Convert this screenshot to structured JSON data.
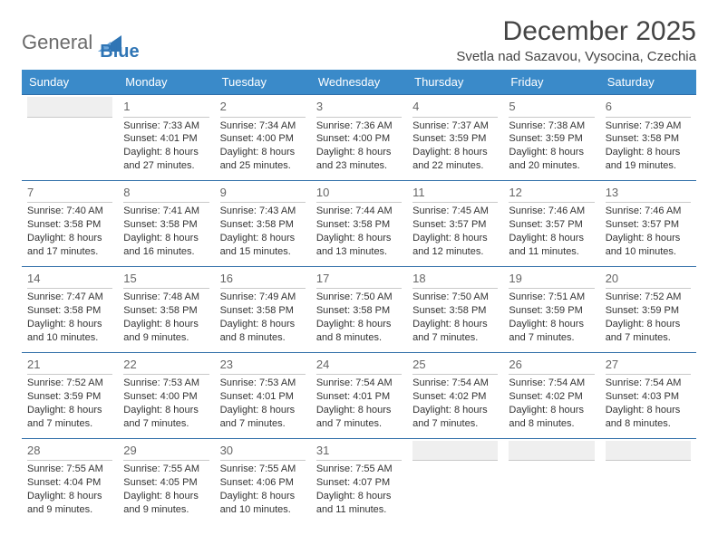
{
  "brand": {
    "part1": "General",
    "part2": "Blue",
    "triangle_color": "#2f75b5"
  },
  "title": {
    "month": "December 2025",
    "location": "Svetla nad Sazavou, Vysocina, Czechia"
  },
  "colors": {
    "header_bg": "#3a8ac9",
    "header_fg": "#ffffff",
    "row_border": "#2f6ea8",
    "daynum_rule": "#c9c9c9",
    "text": "#333333"
  },
  "weekdays": [
    "Sunday",
    "Monday",
    "Tuesday",
    "Wednesday",
    "Thursday",
    "Friday",
    "Saturday"
  ],
  "weeks": [
    [
      {
        "n": "",
        "sr": "",
        "ss": "",
        "dl": ""
      },
      {
        "n": "1",
        "sr": "Sunrise: 7:33 AM",
        "ss": "Sunset: 4:01 PM",
        "dl": "Daylight: 8 hours and 27 minutes."
      },
      {
        "n": "2",
        "sr": "Sunrise: 7:34 AM",
        "ss": "Sunset: 4:00 PM",
        "dl": "Daylight: 8 hours and 25 minutes."
      },
      {
        "n": "3",
        "sr": "Sunrise: 7:36 AM",
        "ss": "Sunset: 4:00 PM",
        "dl": "Daylight: 8 hours and 23 minutes."
      },
      {
        "n": "4",
        "sr": "Sunrise: 7:37 AM",
        "ss": "Sunset: 3:59 PM",
        "dl": "Daylight: 8 hours and 22 minutes."
      },
      {
        "n": "5",
        "sr": "Sunrise: 7:38 AM",
        "ss": "Sunset: 3:59 PM",
        "dl": "Daylight: 8 hours and 20 minutes."
      },
      {
        "n": "6",
        "sr": "Sunrise: 7:39 AM",
        "ss": "Sunset: 3:58 PM",
        "dl": "Daylight: 8 hours and 19 minutes."
      }
    ],
    [
      {
        "n": "7",
        "sr": "Sunrise: 7:40 AM",
        "ss": "Sunset: 3:58 PM",
        "dl": "Daylight: 8 hours and 17 minutes."
      },
      {
        "n": "8",
        "sr": "Sunrise: 7:41 AM",
        "ss": "Sunset: 3:58 PM",
        "dl": "Daylight: 8 hours and 16 minutes."
      },
      {
        "n": "9",
        "sr": "Sunrise: 7:43 AM",
        "ss": "Sunset: 3:58 PM",
        "dl": "Daylight: 8 hours and 15 minutes."
      },
      {
        "n": "10",
        "sr": "Sunrise: 7:44 AM",
        "ss": "Sunset: 3:58 PM",
        "dl": "Daylight: 8 hours and 13 minutes."
      },
      {
        "n": "11",
        "sr": "Sunrise: 7:45 AM",
        "ss": "Sunset: 3:57 PM",
        "dl": "Daylight: 8 hours and 12 minutes."
      },
      {
        "n": "12",
        "sr": "Sunrise: 7:46 AM",
        "ss": "Sunset: 3:57 PM",
        "dl": "Daylight: 8 hours and 11 minutes."
      },
      {
        "n": "13",
        "sr": "Sunrise: 7:46 AM",
        "ss": "Sunset: 3:57 PM",
        "dl": "Daylight: 8 hours and 10 minutes."
      }
    ],
    [
      {
        "n": "14",
        "sr": "Sunrise: 7:47 AM",
        "ss": "Sunset: 3:58 PM",
        "dl": "Daylight: 8 hours and 10 minutes."
      },
      {
        "n": "15",
        "sr": "Sunrise: 7:48 AM",
        "ss": "Sunset: 3:58 PM",
        "dl": "Daylight: 8 hours and 9 minutes."
      },
      {
        "n": "16",
        "sr": "Sunrise: 7:49 AM",
        "ss": "Sunset: 3:58 PM",
        "dl": "Daylight: 8 hours and 8 minutes."
      },
      {
        "n": "17",
        "sr": "Sunrise: 7:50 AM",
        "ss": "Sunset: 3:58 PM",
        "dl": "Daylight: 8 hours and 8 minutes."
      },
      {
        "n": "18",
        "sr": "Sunrise: 7:50 AM",
        "ss": "Sunset: 3:58 PM",
        "dl": "Daylight: 8 hours and 7 minutes."
      },
      {
        "n": "19",
        "sr": "Sunrise: 7:51 AM",
        "ss": "Sunset: 3:59 PM",
        "dl": "Daylight: 8 hours and 7 minutes."
      },
      {
        "n": "20",
        "sr": "Sunrise: 7:52 AM",
        "ss": "Sunset: 3:59 PM",
        "dl": "Daylight: 8 hours and 7 minutes."
      }
    ],
    [
      {
        "n": "21",
        "sr": "Sunrise: 7:52 AM",
        "ss": "Sunset: 3:59 PM",
        "dl": "Daylight: 8 hours and 7 minutes."
      },
      {
        "n": "22",
        "sr": "Sunrise: 7:53 AM",
        "ss": "Sunset: 4:00 PM",
        "dl": "Daylight: 8 hours and 7 minutes."
      },
      {
        "n": "23",
        "sr": "Sunrise: 7:53 AM",
        "ss": "Sunset: 4:01 PM",
        "dl": "Daylight: 8 hours and 7 minutes."
      },
      {
        "n": "24",
        "sr": "Sunrise: 7:54 AM",
        "ss": "Sunset: 4:01 PM",
        "dl": "Daylight: 8 hours and 7 minutes."
      },
      {
        "n": "25",
        "sr": "Sunrise: 7:54 AM",
        "ss": "Sunset: 4:02 PM",
        "dl": "Daylight: 8 hours and 7 minutes."
      },
      {
        "n": "26",
        "sr": "Sunrise: 7:54 AM",
        "ss": "Sunset: 4:02 PM",
        "dl": "Daylight: 8 hours and 8 minutes."
      },
      {
        "n": "27",
        "sr": "Sunrise: 7:54 AM",
        "ss": "Sunset: 4:03 PM",
        "dl": "Daylight: 8 hours and 8 minutes."
      }
    ],
    [
      {
        "n": "28",
        "sr": "Sunrise: 7:55 AM",
        "ss": "Sunset: 4:04 PM",
        "dl": "Daylight: 8 hours and 9 minutes."
      },
      {
        "n": "29",
        "sr": "Sunrise: 7:55 AM",
        "ss": "Sunset: 4:05 PM",
        "dl": "Daylight: 8 hours and 9 minutes."
      },
      {
        "n": "30",
        "sr": "Sunrise: 7:55 AM",
        "ss": "Sunset: 4:06 PM",
        "dl": "Daylight: 8 hours and 10 minutes."
      },
      {
        "n": "31",
        "sr": "Sunrise: 7:55 AM",
        "ss": "Sunset: 4:07 PM",
        "dl": "Daylight: 8 hours and 11 minutes."
      },
      {
        "n": "",
        "sr": "",
        "ss": "",
        "dl": ""
      },
      {
        "n": "",
        "sr": "",
        "ss": "",
        "dl": ""
      },
      {
        "n": "",
        "sr": "",
        "ss": "",
        "dl": ""
      }
    ]
  ]
}
